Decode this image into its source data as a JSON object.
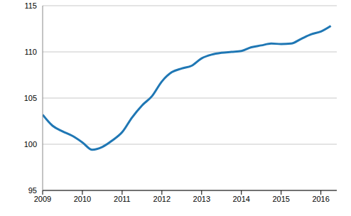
{
  "chart_data": {
    "type": "line",
    "x": [
      2009,
      2009.25,
      2009.5,
      2009.75,
      2010,
      2010.25,
      2010.5,
      2010.75,
      2011,
      2011.25,
      2011.5,
      2011.75,
      2012,
      2012.25,
      2012.5,
      2012.75,
      2013,
      2013.25,
      2013.5,
      2013.75,
      2014,
      2014.25,
      2014.5,
      2014.75,
      2015,
      2015.25,
      2015.5,
      2015.75,
      2016,
      2016.25
    ],
    "values": [
      103.2,
      102.0,
      101.4,
      100.9,
      100.2,
      99.4,
      99.7,
      100.4,
      101.3,
      102.9,
      104.2,
      105.2,
      106.8,
      107.8,
      108.2,
      108.5,
      109.3,
      109.7,
      109.9,
      110.0,
      110.1,
      110.5,
      110.7,
      110.9,
      110.85,
      110.9,
      111.4,
      111.9,
      112.2,
      112.8
    ],
    "color": "#1f77b4",
    "xlim": [
      2009,
      2016.4
    ],
    "xticks": [
      2009,
      2010,
      2011,
      2012,
      2013,
      2014,
      2015,
      2016
    ],
    "ylim": [
      95,
      115
    ],
    "yticks": [
      95,
      100,
      105,
      110,
      115
    ],
    "grid": true
  }
}
